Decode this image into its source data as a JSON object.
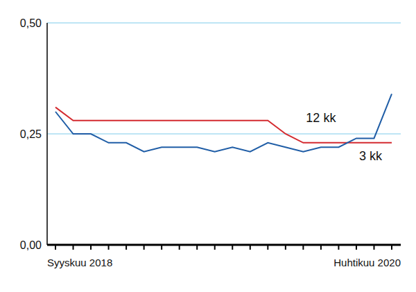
{
  "chart_data": {
    "type": "line",
    "categories": [
      "Syyskuu 2018",
      null,
      null,
      null,
      null,
      null,
      null,
      null,
      null,
      null,
      null,
      null,
      null,
      null,
      null,
      null,
      null,
      null,
      null,
      "Huhtikuu 2020"
    ],
    "series": [
      {
        "name": "12 kk",
        "color": "#d42a2f",
        "values": [
          0.31,
          0.28,
          0.28,
          0.28,
          0.28,
          0.28,
          0.28,
          0.28,
          0.28,
          0.28,
          0.28,
          0.28,
          0.28,
          0.25,
          0.23,
          0.23,
          0.23,
          0.23,
          0.23,
          0.23
        ]
      },
      {
        "name": "3 kk",
        "color": "#1f5da6",
        "values": [
          0.3,
          0.25,
          0.25,
          0.23,
          0.23,
          0.21,
          0.22,
          0.22,
          0.22,
          0.21,
          0.22,
          0.21,
          0.23,
          0.22,
          0.21,
          0.22,
          0.22,
          0.24,
          0.24,
          0.34
        ]
      }
    ],
    "ylim": [
      0,
      0.5
    ],
    "yticks": [
      {
        "value": 0,
        "label": "0,00"
      },
      {
        "value": 0.25,
        "label": "0,25"
      },
      {
        "value": 0.5,
        "label": "0,50"
      }
    ],
    "grid": true
  }
}
